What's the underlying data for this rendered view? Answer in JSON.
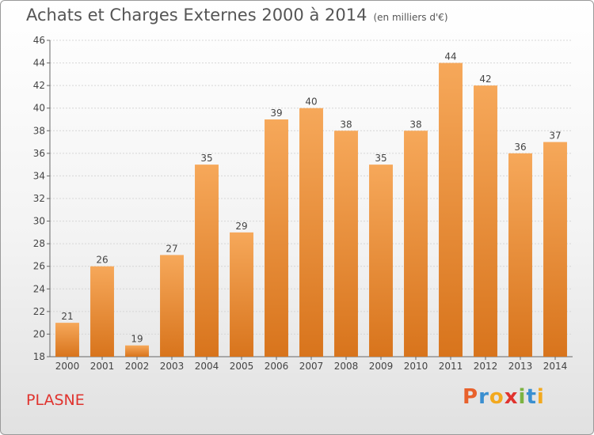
{
  "header": {
    "title": "Achats et Charges Externes 2000 à 2014",
    "subtitle": "(en milliers d'€)"
  },
  "footer": {
    "commune": "PLASNE",
    "logo_text": "Proxiti",
    "logo_colors": [
      "#e8612c",
      "#3a8fd0",
      "#f2a91f",
      "#e0332e",
      "#7cb342",
      "#3a8fd0",
      "#f2a91f"
    ]
  },
  "chart_data": {
    "type": "bar",
    "title": "Achats et Charges Externes 2000 à 2014",
    "xlabel": "",
    "ylabel": "",
    "categories": [
      "2000",
      "2001",
      "2002",
      "2003",
      "2004",
      "2005",
      "2006",
      "2007",
      "2008",
      "2009",
      "2010",
      "2011",
      "2012",
      "2013",
      "2014"
    ],
    "values": [
      21,
      26,
      19,
      27,
      35,
      29,
      39,
      40,
      38,
      35,
      38,
      44,
      42,
      36,
      37
    ],
    "ylim": [
      18,
      46
    ],
    "yticks": [
      18,
      20,
      22,
      24,
      26,
      28,
      30,
      32,
      34,
      36,
      38,
      40,
      42,
      44,
      46
    ],
    "grid": true,
    "bar_color_top": "#f6a85a",
    "bar_color_bottom": "#d8741c"
  }
}
